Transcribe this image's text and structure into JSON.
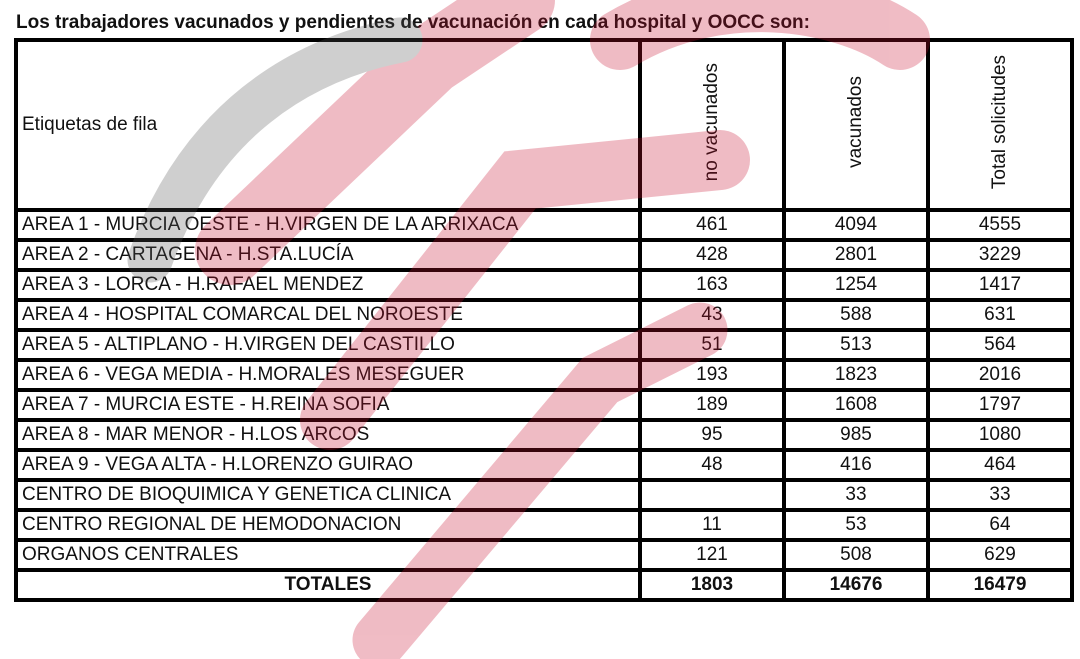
{
  "title": "Los trabajadores vacunados y pendientes de vacunación en cada hospital y OOCC son:",
  "table": {
    "header": [
      "Etiquetas de fila",
      "no vacunados",
      "vacunados",
      "Total solicitudes"
    ],
    "rows": [
      [
        "AREA 1 - MURCIA OESTE - H.VIRGEN DE LA ARRIXACA",
        461,
        4094,
        4555
      ],
      [
        "AREA 2 - CARTAGENA - H.STA.LUCÍA",
        428,
        2801,
        3229
      ],
      [
        "AREA 3 - LORCA - H.RAFAEL MENDEZ",
        163,
        1254,
        1417
      ],
      [
        "AREA 4 - HOSPITAL COMARCAL DEL NOROESTE",
        43,
        588,
        631
      ],
      [
        "AREA 5 - ALTIPLANO - H.VIRGEN DEL CASTILLO",
        51,
        513,
        564
      ],
      [
        "AREA 6 - VEGA MEDIA - H.MORALES MESEGUER",
        193,
        1823,
        2016
      ],
      [
        "AREA 7 - MURCIA ESTE - H.REINA SOFIA",
        189,
        1608,
        1797
      ],
      [
        "AREA 8 - MAR MENOR - H.LOS ARCOS",
        95,
        985,
        1080
      ],
      [
        "AREA 9 - VEGA ALTA - H.LORENZO GUIRAO",
        48,
        416,
        464
      ],
      [
        "CENTRO DE BIOQUIMICA Y GENETICA CLINICA",
        null,
        33,
        33
      ],
      [
        "CENTRO REGIONAL DE HEMODONACION",
        11,
        53,
        64
      ],
      [
        "ORGANOS CENTRALES",
        121,
        508,
        629
      ]
    ],
    "totals": [
      "TOTALES",
      1803,
      14676,
      16479
    ]
  }
}
